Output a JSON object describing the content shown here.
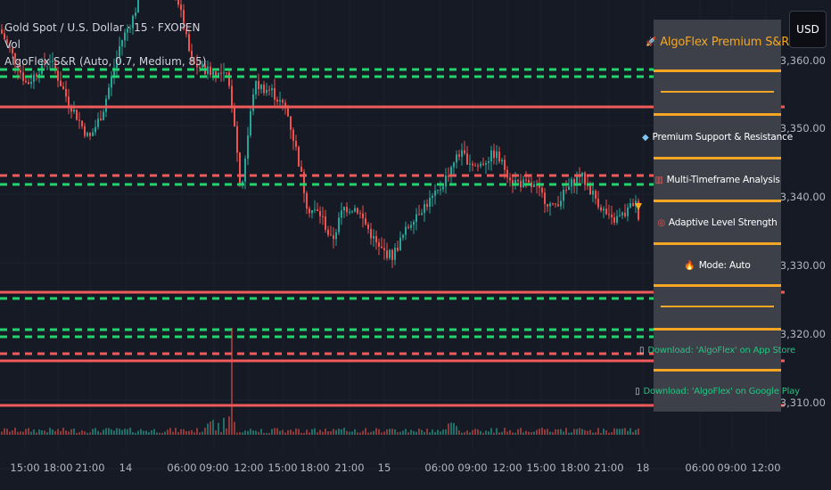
{
  "legend": {
    "symbol": "Gold Spot / U.S. Dollar · 15 · FXOPEN",
    "volume": "Vol",
    "indicator": "AlgoFlex S&R (Auto, 0.7, Medium, 85)"
  },
  "currency_button": "USD",
  "price_axis": [
    "3,350.00",
    "3,340.00",
    "3,330.00",
    "3,320.00",
    "3,310.00"
  ],
  "time_axis": [
    "15:00",
    "18:00",
    "21:00",
    "14",
    "06:00",
    "09:00",
    "12:00",
    "15:00",
    "18:00",
    "21:00",
    "15",
    "06:00",
    "09:00",
    "12:00",
    "15:00",
    "18:00",
    "21:00",
    "18",
    "06:00",
    "09:00",
    "12:00"
  ],
  "panel": {
    "title": "AlgoFlex Premium S&R",
    "title_icon": "rocket-icon",
    "items": [
      {
        "icon": "diamond-icon",
        "label": "Premium Support & Resistance"
      },
      {
        "icon": "chart-icon",
        "label": "Multi-Timeframe Analysis"
      },
      {
        "icon": "target-icon",
        "label": "Adaptive Level Strength"
      },
      {
        "icon": "fire-icon",
        "label": "Mode: Auto"
      }
    ],
    "links": [
      {
        "icon": "phone-icon",
        "label": "Download: 'AlgoFlex' on App Store"
      },
      {
        "icon": "phone-icon",
        "label": "Download: 'AlgoFlex' on Google Play"
      }
    ]
  },
  "colors": {
    "background": "#161a25",
    "up": "#26a69a",
    "down": "#ef5350",
    "support": "#22d46b",
    "resistance": "#f05a5a",
    "panel_accent": "#f5a623"
  }
}
